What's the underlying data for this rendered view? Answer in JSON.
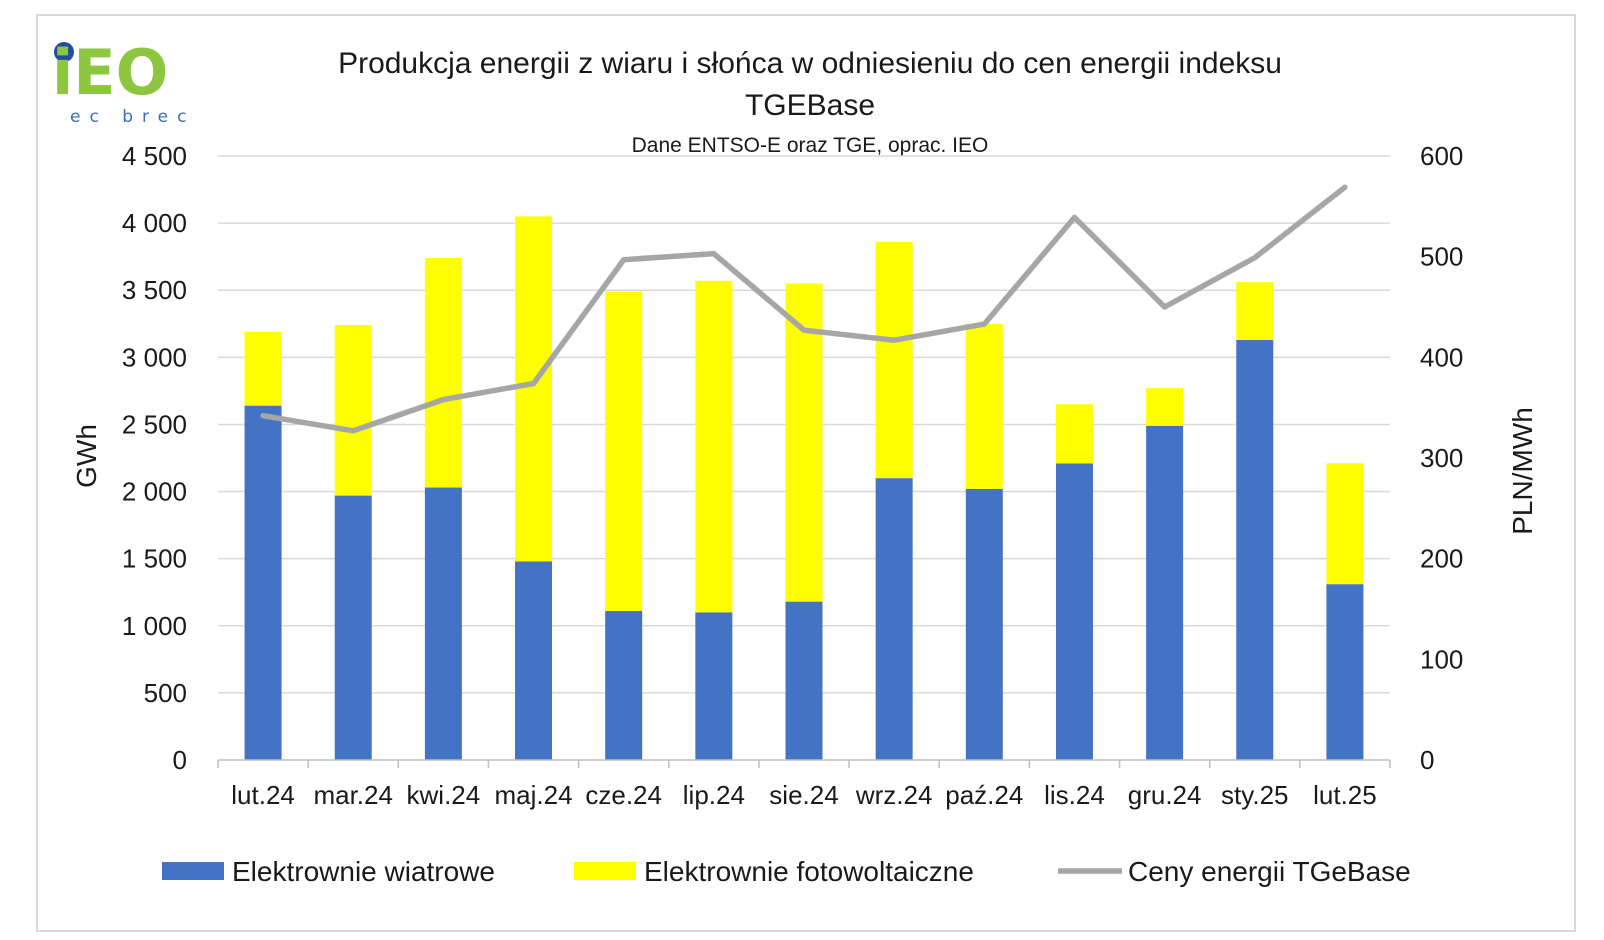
{
  "logo": {
    "text": "iEO",
    "subtext": "ec brec",
    "dot_color": "#1f4e9c",
    "text_color": "#8dc63f"
  },
  "chart_data": {
    "type": "bar",
    "stacked": true,
    "title_lines": [
      "Produkcja energii z wiaru i słońca w odniesieniu do cen energii indeksu",
      "TGEBase"
    ],
    "subtitle": "Dane ENTSO-E oraz TGE, oprac. IEO",
    "categories": [
      "lut.24",
      "mar.24",
      "kwi.24",
      "maj.24",
      "cze.24",
      "lip.24",
      "sie.24",
      "wrz.24",
      "paź.24",
      "lis.24",
      "gru.24",
      "sty.25",
      "lut.25"
    ],
    "series": [
      {
        "name": "Elektrownie wiatrowe",
        "type": "bar",
        "axis": "left",
        "color": "#4472c4",
        "values": [
          2640,
          1970,
          2030,
          1480,
          1110,
          1100,
          1180,
          2100,
          2020,
          2210,
          2490,
          3130,
          1310
        ]
      },
      {
        "name": "Elektrownie fotowoltaiczne",
        "type": "bar",
        "axis": "left",
        "color": "#ffff00",
        "values": [
          550,
          1270,
          1710,
          2570,
          2380,
          2470,
          2370,
          1760,
          1230,
          440,
          280,
          430,
          900
        ]
      },
      {
        "name": "Ceny energii TGeBase",
        "type": "line",
        "axis": "right",
        "color": "#a6a6a6",
        "values": [
          342,
          327,
          358,
          374,
          497,
          503,
          427,
          417,
          433,
          539,
          450,
          499,
          569
        ]
      }
    ],
    "ylabel": "GWh",
    "y2label": "PLN/MWh",
    "ylim": [
      0,
      4500
    ],
    "y2lim": [
      0,
      600
    ],
    "yticks": [
      0,
      500,
      1000,
      1500,
      2000,
      2500,
      3000,
      3500,
      4000,
      4500
    ],
    "yticklabels": [
      "0",
      "500",
      "1 000",
      "1 500",
      "2 000",
      "2 500",
      "3 000",
      "3 500",
      "4 000",
      "4 500"
    ],
    "y2ticks": [
      0,
      100,
      200,
      300,
      400,
      500,
      600
    ],
    "y2ticklabels": [
      "0",
      "100",
      "200",
      "300",
      "400",
      "500",
      "600"
    ],
    "grid": true,
    "legend_position": "bottom"
  }
}
